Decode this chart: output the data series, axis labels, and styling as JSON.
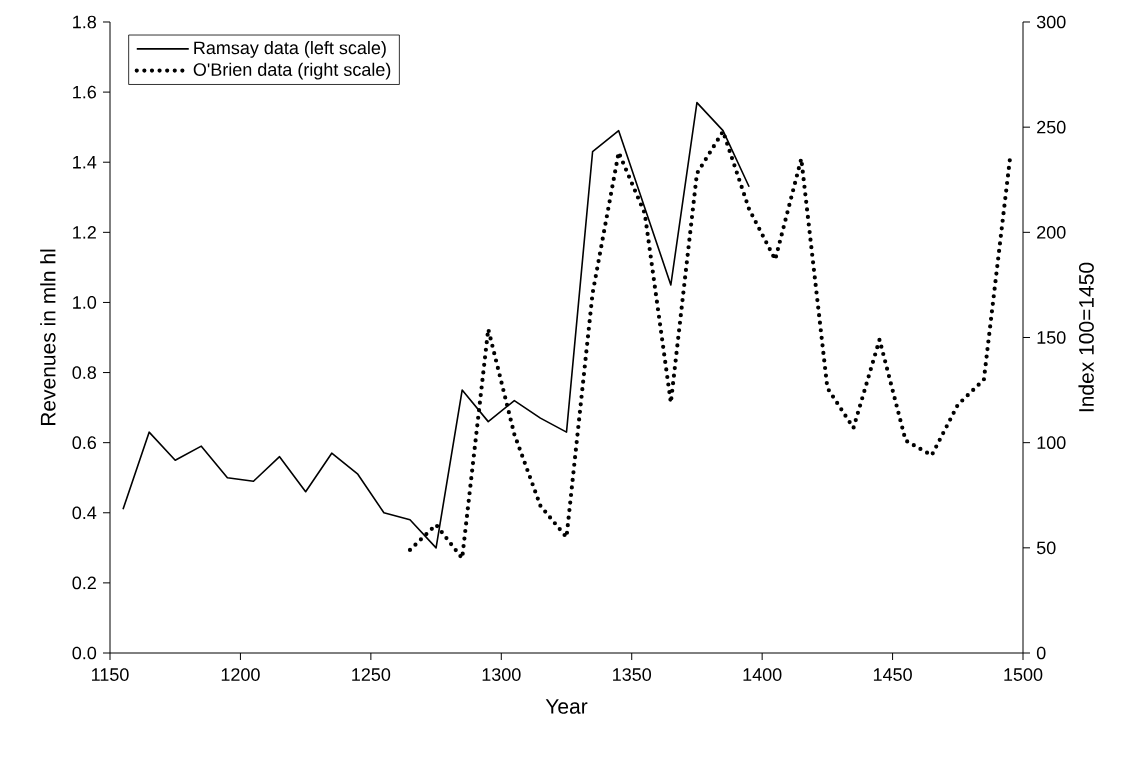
{
  "chart_data": {
    "type": "line",
    "xlabel": "Year",
    "ylabel": "Revenues in mln hl",
    "y2label": "Index 100=1450",
    "xlim": [
      1150,
      1500
    ],
    "xticks": [
      1150,
      1200,
      1250,
      1300,
      1350,
      1400,
      1450,
      1500
    ],
    "ylim": [
      0,
      1.8
    ],
    "yticks": [
      {
        "value": 0,
        "label": "0.0"
      },
      {
        "value": 0.2,
        "label": "0.2"
      },
      {
        "value": 0.4,
        "label": "0.4"
      },
      {
        "value": 0.6,
        "label": "0.6"
      },
      {
        "value": 0.8,
        "label": "0.8"
      },
      {
        "value": 1.0,
        "label": "1.0"
      },
      {
        "value": 1.2,
        "label": "1.2"
      },
      {
        "value": 1.4,
        "label": "1.4"
      },
      {
        "value": 1.6,
        "label": "1.6"
      },
      {
        "value": 1.8,
        "label": "1.8"
      }
    ],
    "y2lim": [
      0,
      300
    ],
    "y2ticks": [
      0,
      50,
      100,
      150,
      200,
      250,
      300
    ],
    "legend": "top left",
    "series": [
      {
        "name": "Ramsay data (left scale)",
        "color": "#000000",
        "line_style": "solid",
        "axis": "y",
        "x": [
          1155,
          1165,
          1175,
          1185,
          1195,
          1205,
          1215,
          1225,
          1235,
          1245,
          1255,
          1265,
          1275,
          1285,
          1295,
          1305,
          1315,
          1325,
          1335,
          1345,
          1365,
          1375,
          1385,
          1395
        ],
        "values": [
          0.41,
          0.63,
          0.55,
          0.59,
          0.5,
          0.49,
          0.56,
          0.46,
          0.57,
          0.51,
          0.4,
          0.38,
          0.3,
          0.75,
          0.66,
          0.72,
          0.67,
          0.63,
          1.43,
          1.49,
          1.05,
          1.57,
          1.49,
          1.33
        ]
      },
      {
        "name": "O'Brien data (right scale)",
        "color": "#000000",
        "line_style": "dotted",
        "axis": "y2",
        "x": [
          1265,
          1275,
          1285,
          1295,
          1305,
          1315,
          1325,
          1335,
          1345,
          1355,
          1365,
          1375,
          1385,
          1395,
          1405,
          1415,
          1425,
          1435,
          1445,
          1455,
          1465,
          1475,
          1485,
          1495
        ],
        "values": [
          49,
          61,
          45,
          154,
          104,
          70,
          55,
          171,
          238,
          209,
          119,
          228,
          248,
          211,
          187,
          235,
          126,
          107,
          149,
          101,
          94,
          118,
          130,
          235
        ]
      }
    ]
  }
}
